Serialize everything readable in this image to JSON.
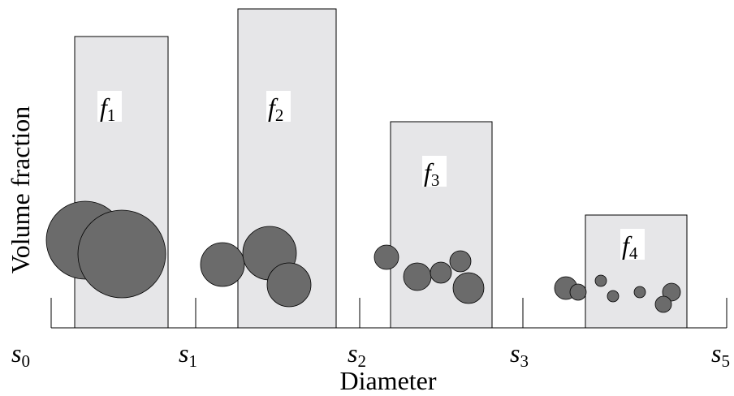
{
  "y_axis_label": "Volume fraction",
  "x_axis_label": "Diameter",
  "bins": [
    {
      "symbol": "f",
      "subscript": "1"
    },
    {
      "symbol": "f",
      "subscript": "2"
    },
    {
      "symbol": "f",
      "subscript": "3"
    },
    {
      "symbol": "f",
      "subscript": "4"
    }
  ],
  "boundaries": [
    {
      "symbol": "s",
      "subscript": "0"
    },
    {
      "symbol": "s",
      "subscript": "1"
    },
    {
      "symbol": "s",
      "subscript": "2"
    },
    {
      "symbol": "s",
      "subscript": "3"
    },
    {
      "symbol": "s",
      "subscript": "5"
    }
  ]
}
